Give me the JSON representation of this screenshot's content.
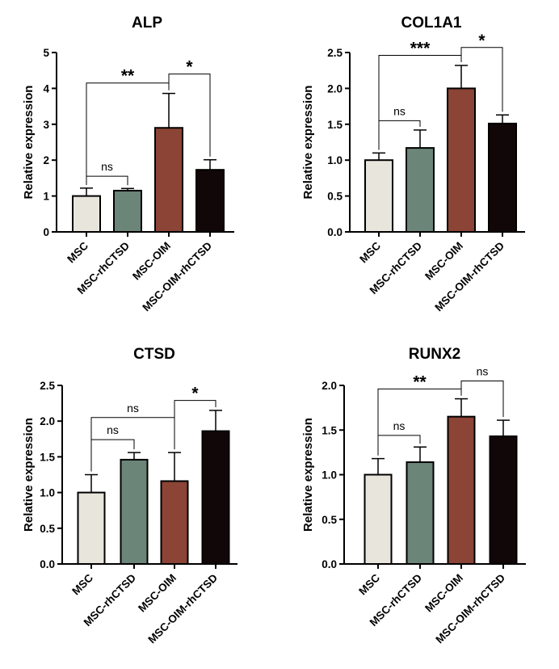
{
  "colors": {
    "MSC": "#e8e5dc",
    "MSC-rhCTSD": "#6b8578",
    "MSC-OIM": "#8b4435",
    "MSC-OIM-rhCTSD": "#120708"
  },
  "chart_data": [
    {
      "type": "bar",
      "title": "ALP",
      "ylabel": "Relative expression",
      "xlabel": "",
      "categories": [
        "MSC",
        "MSC-rhCTSD",
        "MSC-OIM",
        "MSC-OIM-rhCTSD"
      ],
      "values": [
        1.0,
        1.15,
        2.9,
        1.73
      ],
      "errors": [
        0.22,
        0.06,
        0.96,
        0.28
      ],
      "ylim": [
        0,
        5
      ],
      "yticks": [
        "0",
        "1",
        "2",
        "3",
        "4",
        "5"
      ],
      "significance": [
        {
          "from": 0,
          "to": 1,
          "label": "ns",
          "level": 1.55
        },
        {
          "from": 0,
          "to": 2,
          "label": "**",
          "level": 4.15
        },
        {
          "from": 2,
          "to": 3,
          "label": "*",
          "level": 4.4
        }
      ]
    },
    {
      "type": "bar",
      "title": "COL1A1",
      "ylabel": "Relative expression",
      "xlabel": "",
      "categories": [
        "MSC",
        "MSC-rhCTSD",
        "MSC-OIM",
        "MSC-OIM-rhCTSD"
      ],
      "values": [
        1.0,
        1.17,
        2.0,
        1.51
      ],
      "errors": [
        0.1,
        0.25,
        0.32,
        0.12
      ],
      "ylim": [
        0,
        2.5
      ],
      "yticks": [
        "0.0",
        "0.5",
        "1.0",
        "1.5",
        "2.0",
        "2.5"
      ],
      "significance": [
        {
          "from": 0,
          "to": 1,
          "label": "ns",
          "level": 1.55
        },
        {
          "from": 0,
          "to": 2,
          "label": "***",
          "level": 2.46
        },
        {
          "from": 2,
          "to": 3,
          "label": "*",
          "level": 2.57
        }
      ]
    },
    {
      "type": "bar",
      "title": "CTSD",
      "ylabel": "Relative expression",
      "xlabel": "",
      "categories": [
        "MSC",
        "MSC-rhCTSD",
        "MSC-OIM",
        "MSC-OIM-rhCTSD"
      ],
      "values": [
        1.0,
        1.46,
        1.16,
        1.86
      ],
      "errors": [
        0.25,
        0.1,
        0.4,
        0.29
      ],
      "ylim": [
        0,
        2.5
      ],
      "yticks": [
        "0.0",
        "0.5",
        "1.0",
        "1.5",
        "2.0",
        "2.5"
      ],
      "significance": [
        {
          "from": 0,
          "to": 1,
          "label": "ns",
          "level": 1.74
        },
        {
          "from": 0,
          "to": 2,
          "label": "ns",
          "level": 2.05
        },
        {
          "from": 2,
          "to": 3,
          "label": "*",
          "level": 2.29
        }
      ]
    },
    {
      "type": "bar",
      "title": "RUNX2",
      "ylabel": "Relative expression",
      "xlabel": "",
      "categories": [
        "MSC",
        "MSC-rhCTSD",
        "MSC-OIM",
        "MSC-OIM-rhCTSD"
      ],
      "values": [
        1.0,
        1.14,
        1.65,
        1.43
      ],
      "errors": [
        0.18,
        0.17,
        0.2,
        0.18
      ],
      "ylim": [
        0,
        2.0
      ],
      "yticks": [
        "0.0",
        "0.5",
        "1.0",
        "1.5",
        "2.0"
      ],
      "significance": [
        {
          "from": 0,
          "to": 1,
          "label": "ns",
          "level": 1.44
        },
        {
          "from": 0,
          "to": 2,
          "label": "**",
          "level": 1.96
        },
        {
          "from": 2,
          "to": 3,
          "label": "ns",
          "level": 2.05
        }
      ]
    }
  ]
}
